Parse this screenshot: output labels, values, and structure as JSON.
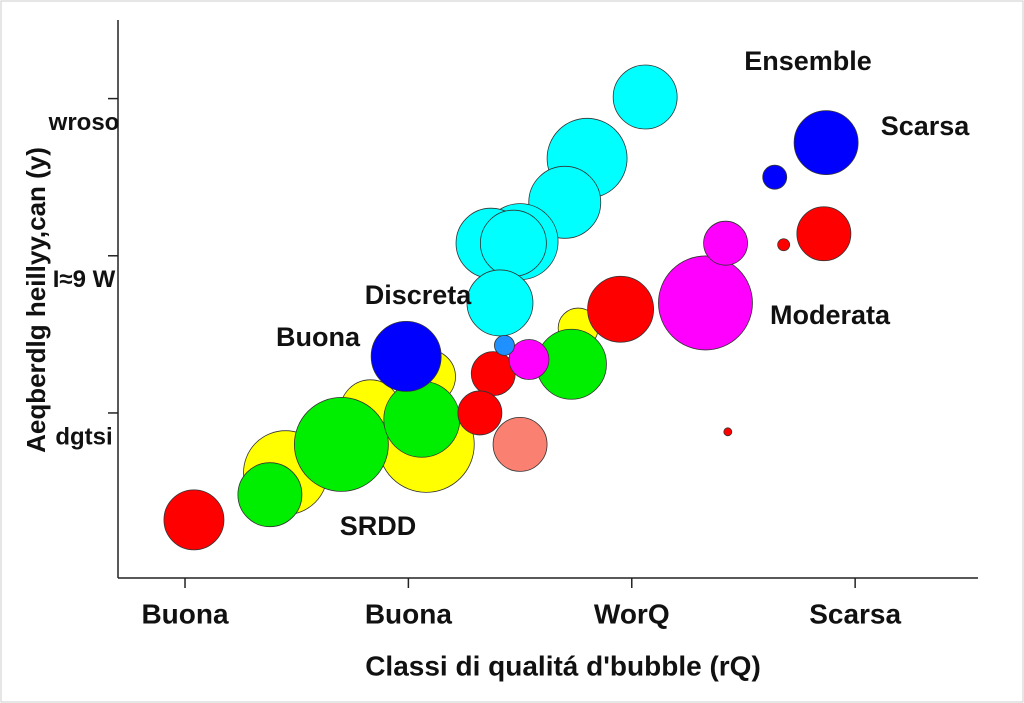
{
  "chart_data": {
    "type": "bubble",
    "xlabel": "Classi di qualitá d'bubble (rQ)",
    "ylabel": "Aeqberdlg heillyy,can (y)",
    "annotations": [
      "Ensemble",
      "Scarsa",
      "Discreta",
      "Buona",
      "Moderata",
      "SRDD"
    ],
    "xlim": [
      0.7,
      4.55
    ],
    "xticks": [
      {
        "value": 1,
        "label": "Buona"
      },
      {
        "value": 2,
        "label": "Buona"
      },
      {
        "value": 3,
        "label": "WorQ"
      },
      {
        "value": 4,
        "label": "Scarsa"
      }
    ],
    "ylim": [
      -0.05,
      3.5
    ],
    "yticks": [
      {
        "value": 1,
        "label": "dgtsi"
      },
      {
        "value": 2,
        "label": "I≈9 W"
      },
      {
        "value": 3,
        "label": "wroso"
      }
    ],
    "series": [
      {
        "color": "#ffff00",
        "x": [
          1.45,
          2.08,
          1.83,
          2.09,
          2.76
        ],
        "values": [
          0.62,
          0.8,
          1.02,
          1.23,
          1.54
        ],
        "sizes": [
          42,
          48,
          30,
          27,
          20
        ]
      },
      {
        "color": "#00ffff",
        "x": [
          3.06,
          2.8,
          2.7,
          2.5,
          2.37,
          2.47,
          2.41
        ],
        "values": [
          3.01,
          2.62,
          2.34,
          2.09,
          2.08,
          2.08,
          1.7
        ],
        "sizes": [
          32,
          40,
          36,
          38,
          35,
          33,
          33
        ]
      },
      {
        "color": "#00ee00",
        "x": [
          1.7,
          2.06,
          1.38,
          2.73
        ],
        "values": [
          0.8,
          0.96,
          0.48,
          1.31
        ],
        "sizes": [
          47,
          38,
          32,
          35
        ]
      },
      {
        "color": "#0000ff",
        "x": [
          1.99,
          3.87,
          3.64
        ],
        "values": [
          1.36,
          2.72,
          2.5
        ],
        "sizes": [
          35,
          32,
          12
        ]
      },
      {
        "color": "#ff0000",
        "x": [
          1.04,
          2.38,
          2.32,
          2.95,
          3.86,
          3.68,
          3.43
        ],
        "values": [
          0.32,
          1.25,
          1.0,
          1.66,
          2.14,
          2.07,
          0.88
        ],
        "sizes": [
          30,
          22,
          22,
          33,
          27,
          6,
          4
        ]
      },
      {
        "color": "#ff00ff",
        "x": [
          3.33,
          3.42,
          2.54
        ],
        "values": [
          1.7,
          2.08,
          1.34
        ],
        "sizes": [
          47,
          22,
          20
        ]
      },
      {
        "color": "#fa8072",
        "x": [
          2.5
        ],
        "values": [
          0.8
        ],
        "sizes": [
          27
        ]
      },
      {
        "color": "#1e90ff",
        "x": [
          2.43
        ],
        "values": [
          1.43
        ],
        "sizes": [
          10
        ]
      }
    ]
  }
}
